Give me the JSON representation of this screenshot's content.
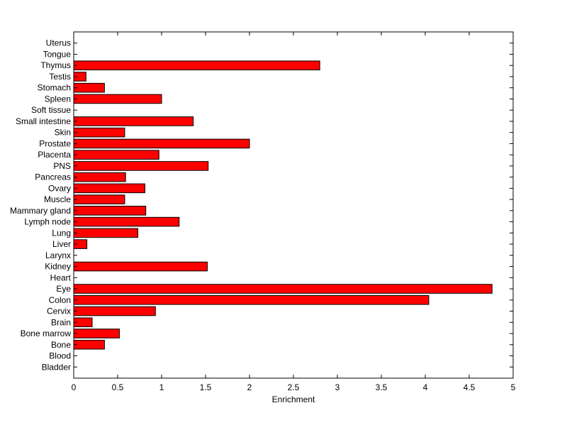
{
  "chart_data": {
    "type": "bar",
    "orientation": "horizontal",
    "xlabel": "Enrichment",
    "ylabel": "",
    "title": "",
    "xlim": [
      0,
      5
    ],
    "xticks": [
      0,
      0.5,
      1,
      1.5,
      2,
      2.5,
      3,
      3.5,
      4,
      4.5,
      5
    ],
    "xtick_labels": [
      "0",
      "0.5",
      "1",
      "1.5",
      "2",
      "2.5",
      "3",
      "3.5",
      "4",
      "4.5",
      "5"
    ],
    "bar_color": "#ff0000",
    "edge_color": "#000000",
    "grid": false,
    "categories": [
      "Bladder",
      "Blood",
      "Bone",
      "Bone marrow",
      "Brain",
      "Cervix",
      "Colon",
      "Eye",
      "Heart",
      "Kidney",
      "Larynx",
      "Liver",
      "Lung",
      "Lymph node",
      "Mammary gland",
      "Muscle",
      "Ovary",
      "Pancreas",
      "PNS",
      "Placenta",
      "Prostate",
      "Skin",
      "Small intestine",
      "Soft tissue",
      "Spleen",
      "Stomach",
      "Testis",
      "Thymus",
      "Tongue",
      "Uterus"
    ],
    "values": [
      0,
      0,
      0.35,
      0.52,
      0.21,
      0.93,
      4.04,
      4.76,
      0,
      1.52,
      0,
      0.15,
      0.73,
      1.2,
      0.82,
      0.58,
      0.81,
      0.59,
      1.53,
      0.97,
      2.0,
      0.58,
      1.36,
      0,
      1.0,
      0.35,
      0.14,
      2.8,
      0,
      0
    ]
  }
}
